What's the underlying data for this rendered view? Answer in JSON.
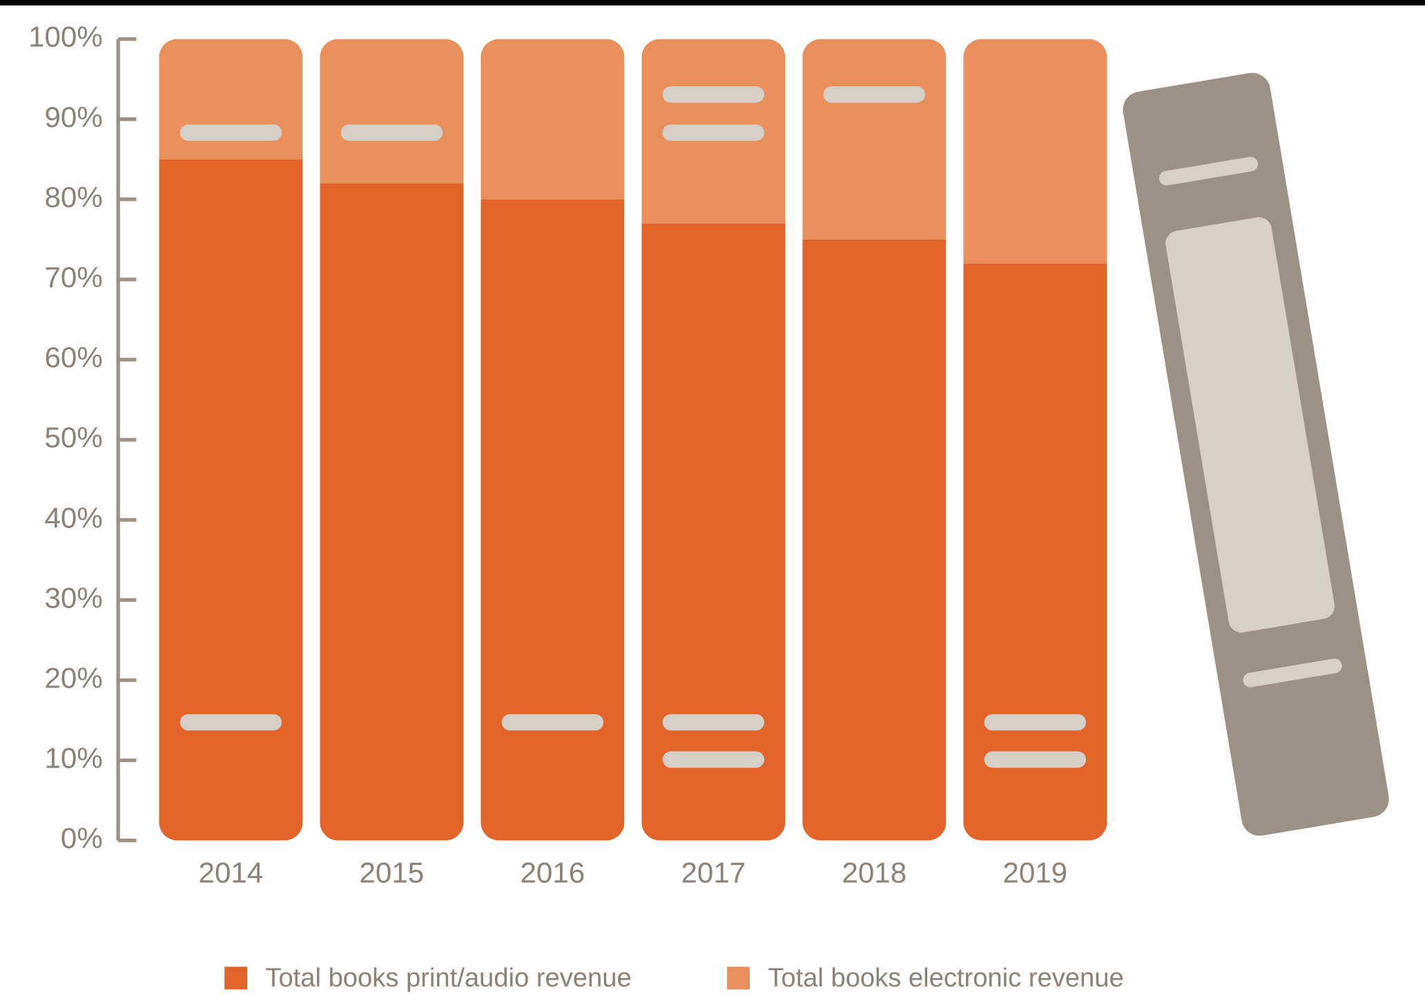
{
  "chart_data": {
    "type": "stacked_bar",
    "categories": [
      "2014",
      "2015",
      "2016",
      "2017",
      "2018",
      "2019"
    ],
    "series": [
      {
        "name": "Total books print/audio revenue",
        "color": "#e2642a",
        "values": [
          85,
          82,
          80,
          77,
          75,
          72
        ]
      },
      {
        "name": "Total books electronic revenue",
        "color": "#e98f5c",
        "values": [
          15,
          18,
          20,
          23,
          25,
          28
        ]
      }
    ],
    "ylim": [
      0,
      100
    ],
    "yticks": [
      {
        "value": 0,
        "label": "0%"
      },
      {
        "value": 10,
        "label": "10%"
      },
      {
        "value": 20,
        "label": "20%"
      },
      {
        "value": 30,
        "label": "30%"
      },
      {
        "value": 40,
        "label": "40%"
      },
      {
        "value": 50,
        "label": "50%"
      },
      {
        "value": 60,
        "label": "60%"
      },
      {
        "value": 70,
        "label": "70%"
      },
      {
        "value": 80,
        "label": "80%"
      },
      {
        "value": 90,
        "label": "90%"
      },
      {
        "value": 100,
        "label": "100%"
      }
    ]
  }
}
